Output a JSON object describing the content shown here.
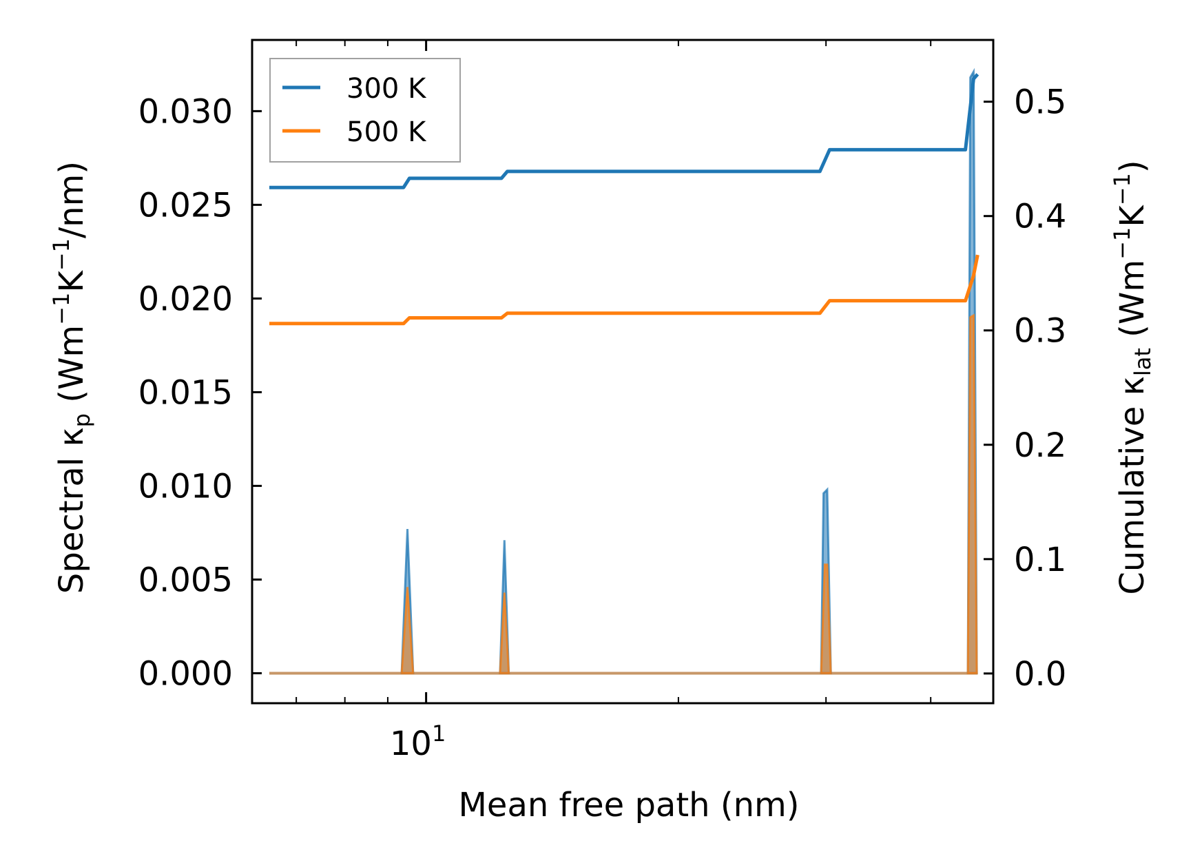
{
  "chart_data": {
    "type": "line",
    "title": "",
    "xlabel": "Mean free path (nm)",
    "ylabel_left": {
      "prefix": "Spectral κ",
      "sub": "p",
      "units_open": " (Wm",
      "sup1": "−1",
      "mid": "K",
      "sup2": "−1",
      "units_close": "/nm)"
    },
    "ylabel_right": {
      "prefix": "Cumulative κ",
      "sub": "lat",
      "units_open": " (Wm",
      "sup1": "−1",
      "mid": "K",
      "sup2": "−1",
      "units_close": ")"
    },
    "xscale": "log",
    "xlim": [
      6.2,
      47.5
    ],
    "ylim_left": [
      -0.0016,
      0.0338
    ],
    "ylim_right": [
      -0.026,
      0.554
    ],
    "x_major_tick": {
      "value": 10,
      "base": "10",
      "exponent": "1"
    },
    "x_minor_ticks": [
      7,
      8,
      9,
      20,
      30,
      40
    ],
    "yticks_left": [
      0.0,
      0.005,
      0.01,
      0.015,
      0.02,
      0.025,
      0.03
    ],
    "yticks_left_labels": [
      "0.000",
      "0.005",
      "0.010",
      "0.015",
      "0.020",
      "0.025",
      "0.030"
    ],
    "yticks_right": [
      0.0,
      0.1,
      0.2,
      0.3,
      0.4,
      0.5
    ],
    "yticks_right_labels": [
      "0.0",
      "0.1",
      "0.2",
      "0.3",
      "0.4",
      "0.5"
    ],
    "legend": {
      "placement": "top-left",
      "entries": [
        {
          "name": "300 K",
          "color": "#1f77b4"
        },
        {
          "name": "500 K",
          "color": "#ff7f0e"
        }
      ]
    },
    "cumulative_series": [
      {
        "name": "300 K",
        "color": "#1f77b4",
        "x": [
          6.5,
          9.4,
          9.55,
          12.3,
          12.5,
          29.5,
          30.3,
          44.0,
          45.0,
          45.5
        ],
        "y": [
          0.425,
          0.425,
          0.433,
          0.433,
          0.439,
          0.439,
          0.458,
          0.458,
          0.52,
          0.524
        ]
      },
      {
        "name": "500 K",
        "color": "#ff7f0e",
        "x": [
          6.5,
          9.4,
          9.55,
          12.3,
          12.5,
          29.5,
          30.3,
          44.0,
          45.0,
          45.5
        ],
        "y": [
          0.306,
          0.306,
          0.311,
          0.311,
          0.315,
          0.315,
          0.326,
          0.326,
          0.348,
          0.366
        ]
      }
    ],
    "spectral_series": [
      {
        "name": "300 K",
        "color": "#1f77b4",
        "peaks": [
          {
            "x": [
              9.35,
              9.5,
              9.65
            ],
            "y": [
              0.0,
              0.0077,
              0.0
            ]
          },
          {
            "x": [
              12.25,
              12.4,
              12.55
            ],
            "y": [
              0.0,
              0.0071,
              0.0
            ]
          },
          {
            "x": [
              29.6,
              29.8,
              30.1,
              30.4
            ],
            "y": [
              0.0,
              0.0096,
              0.0098,
              0.0
            ]
          },
          {
            "x": [
              44.3,
              44.6,
              45.0,
              45.4
            ],
            "y": [
              0.0,
              0.0318,
              0.0321,
              0.0
            ]
          }
        ]
      },
      {
        "name": "500 K",
        "color": "#ff7f0e",
        "peaks": [
          {
            "x": [
              9.35,
              9.5,
              9.65
            ],
            "y": [
              0.0,
              0.0046,
              0.0
            ]
          },
          {
            "x": [
              12.25,
              12.4,
              12.55
            ],
            "y": [
              0.0,
              0.0043,
              0.0
            ]
          },
          {
            "x": [
              29.6,
              29.9,
              30.1,
              30.4
            ],
            "y": [
              0.0,
              0.0058,
              0.0058,
              0.0
            ]
          },
          {
            "x": [
              44.3,
              44.6,
              45.0,
              45.4
            ],
            "y": [
              0.0,
              0.019,
              0.0191,
              0.0
            ]
          }
        ]
      }
    ],
    "baseline": {
      "x": [
        6.5,
        45.5
      ],
      "y": 0.0
    }
  }
}
